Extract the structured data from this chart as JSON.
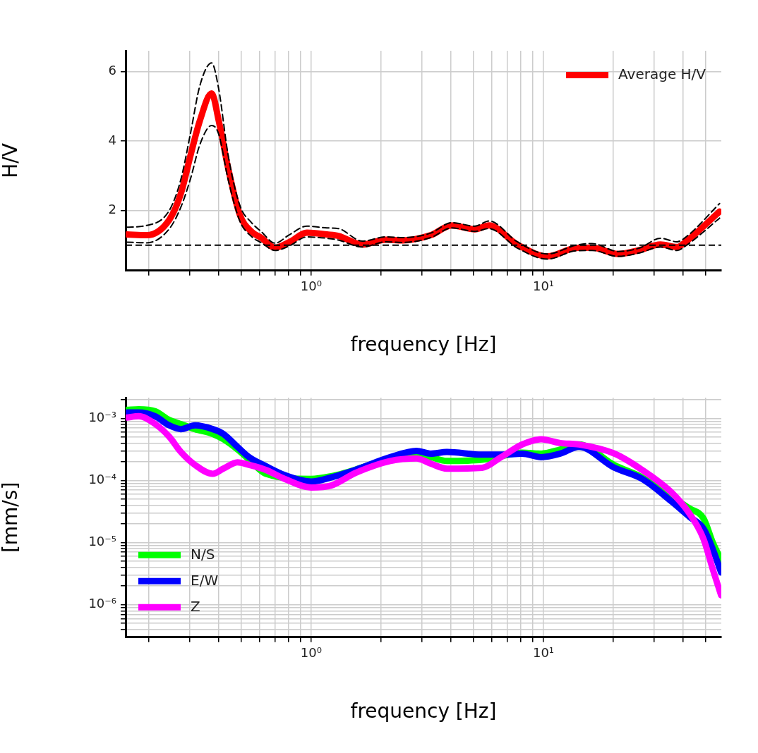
{
  "chart_data": [
    {
      "type": "line",
      "xlabel": "frequency [Hz]",
      "ylabel": "H/V",
      "log": "x",
      "grid": true,
      "legend": "top right",
      "marker": "none",
      "x": [
        0.161,
        0.196,
        0.245,
        0.275,
        0.302,
        0.332,
        0.373,
        0.4,
        0.439,
        0.493,
        0.554,
        0.608,
        0.7,
        0.805,
        0.959,
        1.17,
        1.31,
        1.66,
        2.1,
        2.47,
        3.27,
        4.03,
        5.07,
        5.83,
        7.72,
        10.4,
        13.8,
        16.2,
        21.0,
        25.9,
        31.9,
        37.6,
        41.3,
        57.3
      ],
      "series": [
        {
          "name": "Average H/V",
          "color": "#ff0000",
          "line_style": "solid",
          "values": [
            1.31,
            1.29,
            1.73,
            2.49,
            3.57,
            4.59,
            5.37,
            4.59,
            3.23,
            1.88,
            1.39,
            1.22,
            0.93,
            1.09,
            1.36,
            1.31,
            1.27,
            1.02,
            1.16,
            1.14,
            1.29,
            1.57,
            1.46,
            1.57,
            1.02,
            0.68,
            0.92,
            0.93,
            0.75,
            0.86,
            1.02,
            0.95,
            1.12,
            1.97
          ]
        },
        {
          "color": "#000000",
          "line_style": "dashed",
          "values": [
            1.52,
            1.57,
            2.0,
            2.9,
            4.2,
            5.6,
            6.25,
            5.5,
            3.6,
            2.15,
            1.65,
            1.4,
            1.06,
            1.3,
            1.55,
            1.5,
            1.48,
            1.12,
            1.24,
            1.22,
            1.35,
            1.65,
            1.55,
            1.7,
            1.1,
            0.75,
            1.0,
            1.05,
            0.82,
            0.92,
            1.2,
            1.1,
            1.25,
            2.2
          ]
        },
        {
          "color": "#000000",
          "line_style": "dashed",
          "values": [
            1.09,
            1.07,
            1.47,
            2.1,
            2.9,
            3.9,
            4.45,
            4.2,
            2.9,
            1.7,
            1.25,
            1.08,
            0.85,
            0.98,
            1.24,
            1.2,
            1.15,
            0.95,
            1.1,
            1.08,
            1.22,
            1.5,
            1.4,
            1.48,
            0.92,
            0.6,
            0.84,
            0.85,
            0.68,
            0.78,
            0.95,
            0.85,
            1.0,
            1.78
          ]
        }
      ],
      "ref_lines": [
        {
          "axis": "y",
          "value": 1,
          "color": "#000000",
          "line_style": "dashed"
        }
      ],
      "xlim": [
        0.159,
        58.3
      ],
      "ylim": [
        0.27,
        6.6
      ],
      "xticks": [
        {
          "value": 0.2,
          "label": null
        },
        {
          "value": 0.3,
          "label": null
        },
        {
          "value": 0.4,
          "label": null
        },
        {
          "value": 0.5,
          "label": null
        },
        {
          "value": 0.6,
          "label": null
        },
        {
          "value": 0.7,
          "label": null
        },
        {
          "value": 0.8,
          "label": null
        },
        {
          "value": 0.9,
          "label": null
        },
        {
          "value": 1,
          "label": "10⁰"
        },
        {
          "value": 2,
          "label": null
        },
        {
          "value": 3,
          "label": null
        },
        {
          "value": 4,
          "label": null
        },
        {
          "value": 5,
          "label": null
        },
        {
          "value": 6,
          "label": null
        },
        {
          "value": 7,
          "label": null
        },
        {
          "value": 8,
          "label": null
        },
        {
          "value": 9,
          "label": null
        },
        {
          "value": 10,
          "label": "10¹"
        },
        {
          "value": 20,
          "label": null
        },
        {
          "value": 30,
          "label": null
        },
        {
          "value": 40,
          "label": null
        },
        {
          "value": 50,
          "label": null
        }
      ],
      "yticks": [
        2,
        4,
        6
      ]
    },
    {
      "type": "line",
      "xlabel": "frequency [Hz]",
      "ylabel": "[mm/s]",
      "log": "xy",
      "grid": true,
      "legend": "bottom left",
      "marker": "none",
      "x": [
        0.161,
        0.181,
        0.213,
        0.245,
        0.275,
        0.316,
        0.377,
        0.419,
        0.482,
        0.541,
        0.638,
        0.769,
        1.0,
        1.22,
        1.55,
        2.19,
        2.84,
        3.27,
        3.84,
        5.45,
        6.57,
        8.1,
        9.78,
        11.8,
        14.2,
        20.1,
        26.6,
        35.3,
        42.5,
        48.9,
        53.6,
        58.2
      ],
      "series": [
        {
          "name": "N/S",
          "color": "#00ff00",
          "line_style": "solid",
          "values": [
            0.00137,
            0.0014,
            0.0013,
            0.00094,
            0.00081,
            0.00067,
            0.00056,
            0.00046,
            0.000315,
            0.000216,
            0.000128,
            null,
            0.000106,
            0.000117,
            null,
            null,
            0.00026,
            0.000237,
            0.000206,
            0.000216,
            0.000245,
            0.00028,
            0.00027,
            0.000315,
            0.00038,
            0.000178,
            0.000112,
            5.6e-05,
            3.55e-05,
            2.44e-05,
            1e-05,
            5.3e-06
          ]
        },
        {
          "name": "E/W",
          "color": "#0000ff",
          "line_style": "solid",
          "values": [
            0.00124,
            0.00124,
            0.00108,
            0.00077,
            0.00067,
            0.00077,
            0.00067,
            0.00056,
            0.000347,
            0.000237,
            0.00017,
            0.000122,
            9.6e-05,
            0.000112,
            0.000148,
            0.000237,
            0.0003,
            0.00027,
            0.000287,
            0.00026,
            0.00026,
            0.00027,
            0.000237,
            0.00027,
            0.000347,
            0.000162,
            0.000106,
            4.7e-05,
            2.6e-05,
            1.67e-05,
            7.8e-06,
            3.3e-06
          ]
        },
        {
          "name": "Z",
          "color": "#ff00ff",
          "line_style": "solid",
          "values": [
            0.00103,
            0.00108,
            0.00081,
            0.000506,
            0.000287,
            0.000178,
            0.000128,
            0.000155,
            0.000196,
            0.000178,
            0.000148,
            0.000106,
            7.7e-05,
            8.3e-05,
            0.000132,
            0.000206,
            0.000226,
            0.000187,
            0.000155,
            0.00016,
            0.000237,
            0.00038,
            0.00046,
            0.0004,
            0.00038,
            0.000273,
            0.000148,
            6.6e-05,
            2.94e-05,
            1.14e-05,
            3.7e-06,
            1.42e-06
          ]
        }
      ],
      "xlim": [
        0.159,
        58.3
      ],
      "ylim": [
        3e-07,
        0.00215
      ],
      "xticks": [
        {
          "value": 0.2,
          "label": null
        },
        {
          "value": 0.3,
          "label": null
        },
        {
          "value": 0.4,
          "label": null
        },
        {
          "value": 0.5,
          "label": null
        },
        {
          "value": 0.6,
          "label": null
        },
        {
          "value": 0.7,
          "label": null
        },
        {
          "value": 0.8,
          "label": null
        },
        {
          "value": 0.9,
          "label": null
        },
        {
          "value": 1,
          "label": "10⁰"
        },
        {
          "value": 2,
          "label": null
        },
        {
          "value": 3,
          "label": null
        },
        {
          "value": 4,
          "label": null
        },
        {
          "value": 5,
          "label": null
        },
        {
          "value": 6,
          "label": null
        },
        {
          "value": 7,
          "label": null
        },
        {
          "value": 8,
          "label": null
        },
        {
          "value": 9,
          "label": null
        },
        {
          "value": 10,
          "label": "10¹"
        },
        {
          "value": 20,
          "label": null
        },
        {
          "value": 30,
          "label": null
        },
        {
          "value": 40,
          "label": null
        },
        {
          "value": 50,
          "label": null
        }
      ],
      "yticks": [
        {
          "value": 4e-07,
          "label": null
        },
        {
          "value": 5e-07,
          "label": null
        },
        {
          "value": 6e-07,
          "label": null
        },
        {
          "value": 7e-07,
          "label": null
        },
        {
          "value": 8e-07,
          "label": null
        },
        {
          "value": 9e-07,
          "label": null
        },
        {
          "value": 1e-06,
          "label": "10⁻⁶"
        },
        {
          "value": 2e-06,
          "label": null
        },
        {
          "value": 3e-06,
          "label": null
        },
        {
          "value": 4e-06,
          "label": null
        },
        {
          "value": 5e-06,
          "label": null
        },
        {
          "value": 6e-06,
          "label": null
        },
        {
          "value": 7e-06,
          "label": null
        },
        {
          "value": 8e-06,
          "label": null
        },
        {
          "value": 9e-06,
          "label": null
        },
        {
          "value": 1e-05,
          "label": "10⁻⁵"
        },
        {
          "value": 2e-05,
          "label": null
        },
        {
          "value": 3e-05,
          "label": null
        },
        {
          "value": 4e-05,
          "label": null
        },
        {
          "value": 5e-05,
          "label": null
        },
        {
          "value": 6e-05,
          "label": null
        },
        {
          "value": 7e-05,
          "label": null
        },
        {
          "value": 8e-05,
          "label": null
        },
        {
          "value": 9e-05,
          "label": null
        },
        {
          "value": 0.0001,
          "label": "10⁻⁴"
        },
        {
          "value": 0.0002,
          "label": null
        },
        {
          "value": 0.0003,
          "label": null
        },
        {
          "value": 0.0004,
          "label": null
        },
        {
          "value": 0.0005,
          "label": null
        },
        {
          "value": 0.0006,
          "label": null
        },
        {
          "value": 0.0007,
          "label": null
        },
        {
          "value": 0.0008,
          "label": null
        },
        {
          "value": 0.0009,
          "label": null
        },
        {
          "value": 0.001,
          "label": "10⁻³"
        },
        {
          "value": 0.002,
          "label": null
        }
      ]
    }
  ]
}
